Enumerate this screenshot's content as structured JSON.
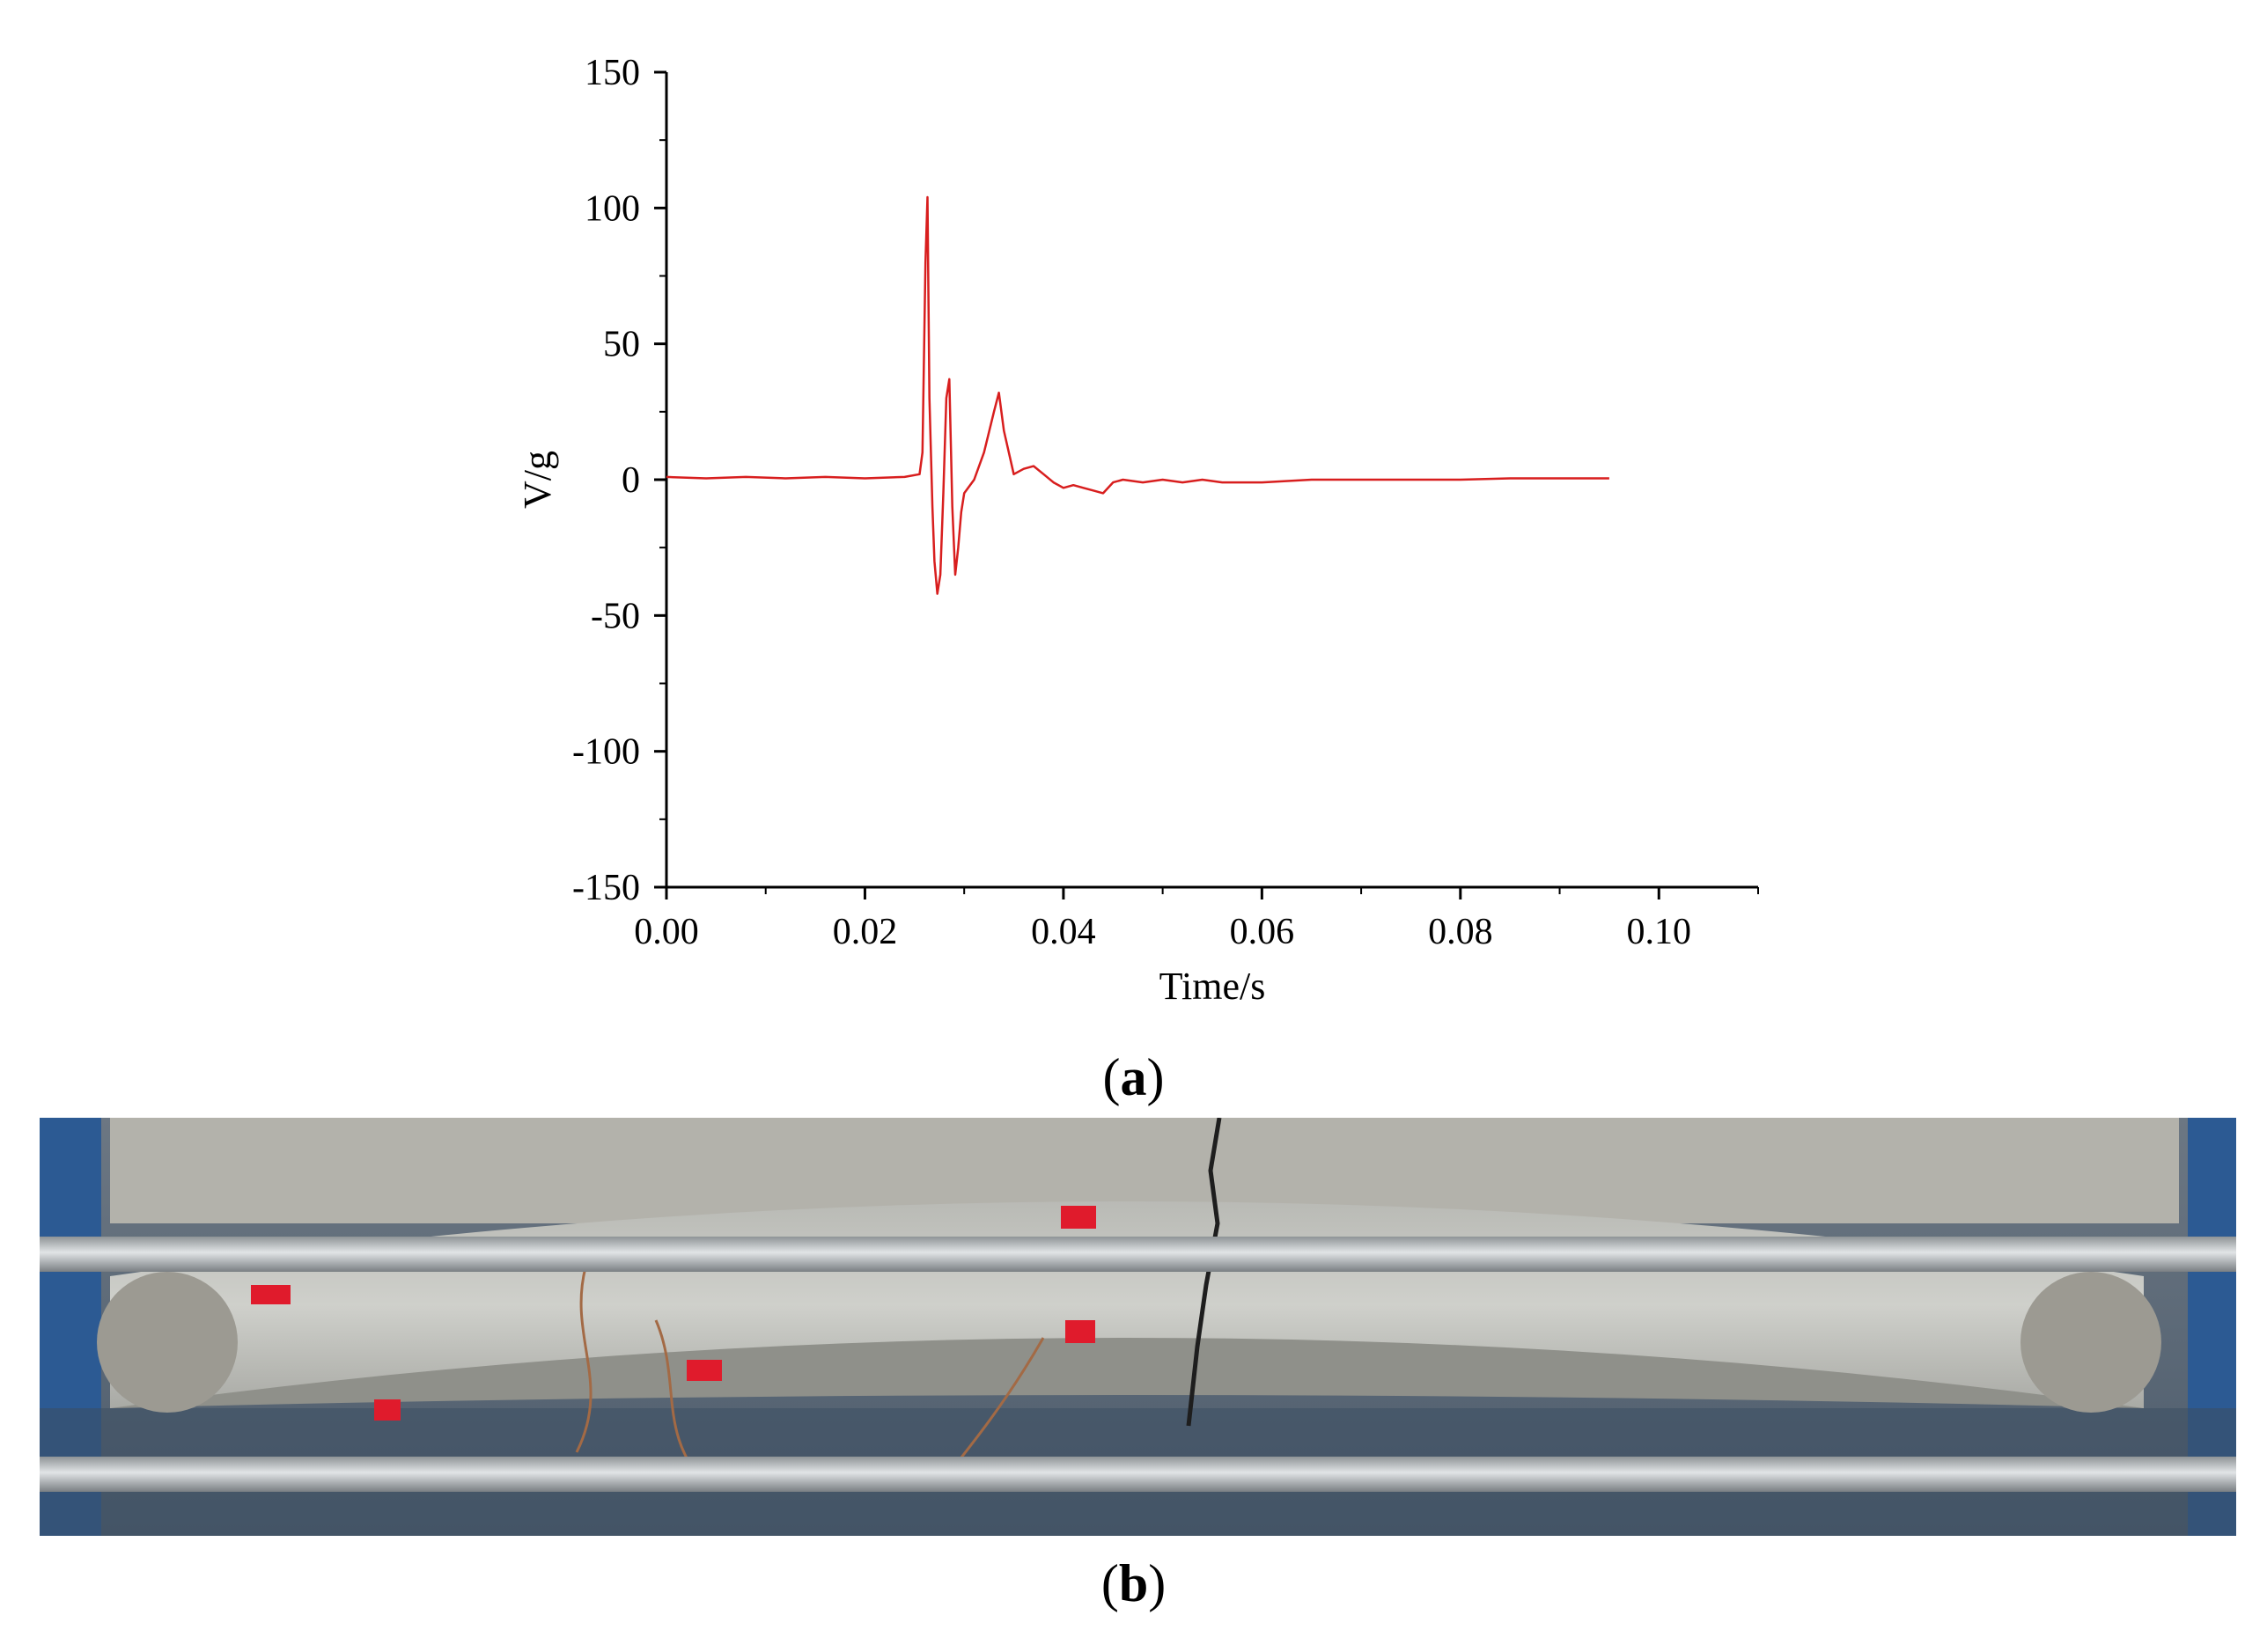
{
  "chart_data": {
    "type": "line",
    "xlabel": "Time/s",
    "ylabel": "V/g",
    "xlim": [
      0,
      0.11
    ],
    "ylim": [
      -150,
      150
    ],
    "x_ticks": [
      "0.00",
      "0.02",
      "0.04",
      "0.06",
      "0.08",
      "0.10"
    ],
    "y_ticks": [
      "150",
      "100",
      "50",
      "0",
      "-50",
      "-100",
      "-150"
    ],
    "line_color": "#d81e1e",
    "grid": false,
    "series": [
      {
        "x": [
          0,
          0.004,
          0.008,
          0.012,
          0.016,
          0.02,
          0.024,
          0.0255,
          0.0258,
          0.0261,
          0.0263,
          0.0265,
          0.0268,
          0.027,
          0.0273,
          0.0276,
          0.0279,
          0.0282,
          0.0285,
          0.0288,
          0.0291,
          0.0294,
          0.0297,
          0.03,
          0.031,
          0.032,
          0.033,
          0.0335,
          0.034,
          0.035,
          0.036,
          0.037,
          0.038,
          0.039,
          0.04,
          0.041,
          0.042,
          0.043,
          0.044,
          0.045,
          0.046,
          0.048,
          0.05,
          0.052,
          0.054,
          0.056,
          0.058,
          0.06,
          0.065,
          0.07,
          0.075,
          0.08,
          0.085,
          0.09,
          0.095
        ],
        "y": [
          1,
          0.5,
          1,
          0.5,
          1,
          0.5,
          1,
          2,
          10,
          80,
          104,
          30,
          -10,
          -30,
          -42,
          -35,
          -5,
          30,
          37,
          -10,
          -35,
          -25,
          -12,
          -5,
          0,
          10,
          25,
          32,
          18,
          2,
          4,
          5,
          2,
          -1,
          -3,
          -2,
          -3,
          -4,
          -5,
          -1,
          0,
          -1,
          0,
          -1,
          0,
          -1,
          -1,
          -1,
          0,
          0,
          0,
          0,
          0.5,
          0.5,
          0.5
        ]
      }
    ]
  },
  "captions": {
    "a": "a",
    "b": "b"
  }
}
